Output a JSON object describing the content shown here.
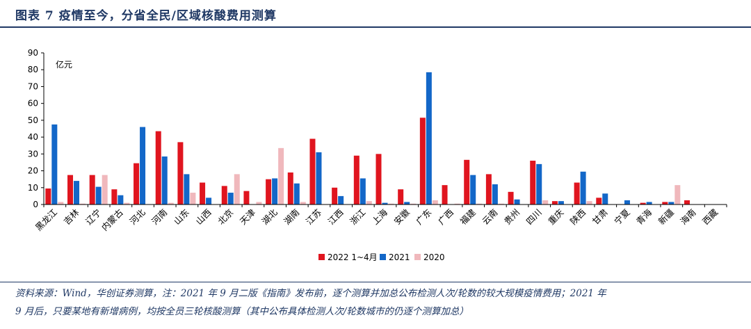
{
  "header": {
    "title": "图表 7    疫情至今，分省全民/区域核酸费用测算"
  },
  "chart_data": {
    "type": "bar",
    "ylabel": "亿元",
    "ylim": [
      0,
      90
    ],
    "yticks": [
      0,
      10,
      20,
      30,
      40,
      50,
      60,
      70,
      80,
      90
    ],
    "grid": false,
    "legend_position": "bottom-center",
    "categories": [
      "黑龙江",
      "吉林",
      "辽宁",
      "内蒙古",
      "河北",
      "河南",
      "山东",
      "山西",
      "北京",
      "天津",
      "湖北",
      "湖南",
      "江苏",
      "江西",
      "浙江",
      "上海",
      "安徽",
      "广东",
      "广西",
      "福建",
      "云南",
      "贵州",
      "四川",
      "重庆",
      "陕西",
      "甘肃",
      "宁夏",
      "青海",
      "新疆",
      "海南",
      "西藏"
    ],
    "series": [
      {
        "name": "2022 1~4月",
        "color": "#e0151f",
        "values": [
          9.5,
          17.5,
          17.5,
          9,
          24.5,
          43.5,
          37,
          13,
          11,
          8,
          15,
          19,
          39,
          10,
          29,
          30,
          9,
          51.5,
          11.5,
          26.5,
          18,
          7.5,
          26,
          2,
          13,
          4,
          0,
          1,
          1.5,
          2.5,
          0
        ]
      },
      {
        "name": "2021",
        "color": "#1367c8",
        "values": [
          47.5,
          14,
          10.5,
          5.5,
          46,
          28.5,
          18,
          4,
          7,
          0,
          15.5,
          12.5,
          31,
          5,
          15.5,
          1,
          1.5,
          78.5,
          0,
          17.5,
          12,
          3,
          24,
          2,
          19.5,
          6.5,
          2.5,
          1.5,
          1.5,
          0,
          0
        ]
      },
      {
        "name": "2020",
        "color": "#f0b8bc",
        "values": [
          1.5,
          0.5,
          17.5,
          1,
          0,
          1,
          7,
          0,
          18,
          1.5,
          33.5,
          1.5,
          0,
          0,
          2,
          0.5,
          0.5,
          2.5,
          0.5,
          0.5,
          0.5,
          0,
          2.5,
          0,
          2,
          0,
          0,
          0,
          11.5,
          0,
          0
        ]
      }
    ]
  },
  "footer": {
    "line1": "资料来源：Wind，华创证券测算，注：2021 年 9 月二版《指南》发布前，逐个测算并加总公布检测人次/轮数的较大规模疫情费用；2021 年",
    "line2": "9 月后，只要某地有新增病例，均按全员三轮核酸测算（其中公布具体检测人次/轮数城市的仍逐个测算加总）"
  }
}
